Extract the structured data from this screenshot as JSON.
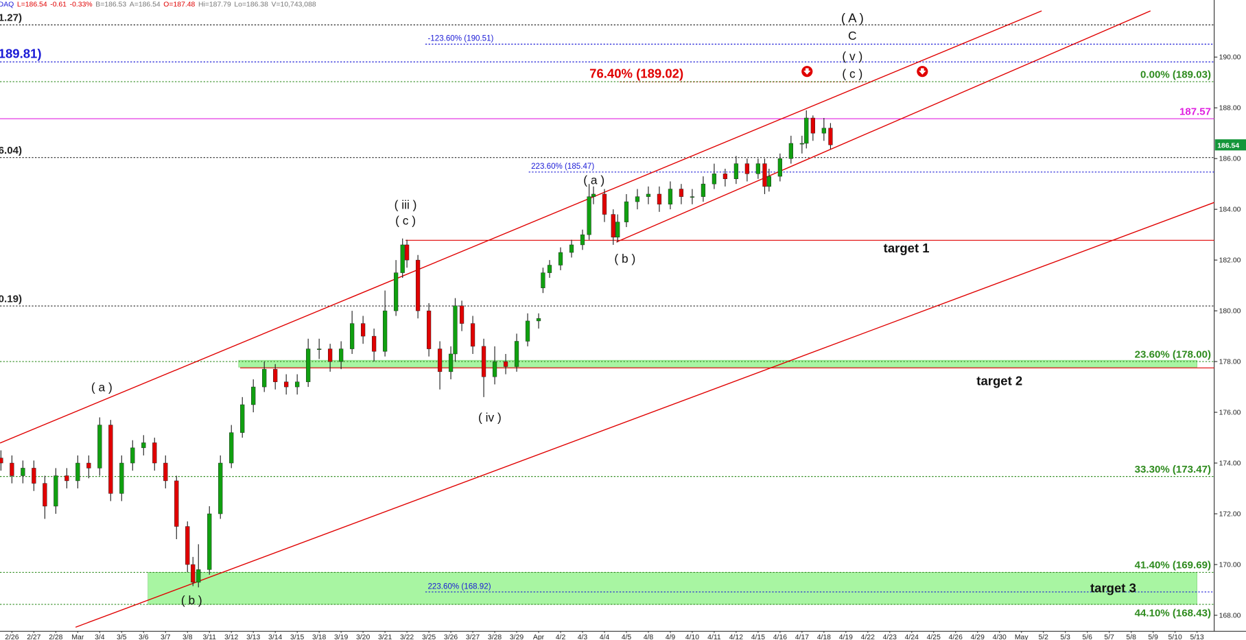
{
  "chart_data": {
    "type": "candlestick",
    "header": [
      {
        "text": "DAQ",
        "color": "#1a1ad6"
      },
      {
        "text": "L=186.54",
        "color": "#e00000"
      },
      {
        "text": "-0.61",
        "color": "#e00000"
      },
      {
        "text": "-0.33%",
        "color": "#e00000"
      },
      {
        "text": "B=186.53",
        "color": "#777777"
      },
      {
        "text": "A=186.54",
        "color": "#777777"
      },
      {
        "text": "O=187.48",
        "color": "#e00000"
      },
      {
        "text": "Hi=187.79",
        "color": "#777777"
      },
      {
        "text": "Lo=186.38",
        "color": "#777777"
      },
      {
        "text": "V=10,743,088",
        "color": "#777777"
      }
    ],
    "x": [
      -0.5,
      0,
      0.5,
      1,
      1.5,
      2,
      2.5,
      3,
      3.5,
      4,
      4.5,
      5,
      5.5,
      6,
      6.5,
      7,
      7.5,
      8,
      8.25,
      8.5,
      9,
      9.5,
      10,
      10.5,
      11,
      11.5,
      12,
      12.5,
      13,
      13.5,
      14,
      14.5,
      15,
      15.5,
      16,
      16.5,
      17,
      17.5,
      17.8,
      18,
      18.5,
      19,
      19.5,
      20,
      20.2,
      20.5,
      21,
      21.5,
      22,
      22.5,
      23,
      23.5,
      24,
      24.2,
      24.5,
      25,
      25.5,
      26,
      26.3,
      26.5,
      27,
      27.4,
      27.6,
      28,
      28.5,
      29,
      29.5,
      30,
      30.5,
      31,
      31.5,
      32,
      32.5,
      33,
      33.5,
      34,
      34.3,
      34.5,
      35,
      35.5,
      36,
      36.2,
      36.5,
      37,
      37.3
    ],
    "open": [
      174.2,
      174.0,
      173.5,
      173.8,
      173.2,
      172.3,
      173.5,
      173.3,
      174.0,
      173.8,
      175.5,
      172.8,
      174.0,
      174.6,
      174.8,
      174.0,
      173.3,
      171.5,
      170.0,
      169.3,
      169.8,
      172.0,
      174.0,
      175.2,
      176.3,
      177.0,
      177.7,
      177.2,
      177.0,
      177.2,
      178.5,
      178.5,
      178.0,
      178.5,
      179.5,
      179.0,
      178.4,
      180.0,
      181.5,
      182.6,
      182.0,
      180.0,
      178.5,
      177.6,
      178.3,
      180.2,
      179.5,
      178.6,
      177.4,
      178.0,
      177.8,
      178.8,
      179.6,
      180.9,
      181.5,
      181.8,
      182.3,
      182.6,
      183.0,
      184.5,
      184.6,
      183.8,
      182.9,
      183.5,
      184.3,
      184.5,
      184.6,
      184.2,
      184.8,
      184.5,
      184.5,
      185.0,
      185.4,
      185.2,
      185.8,
      185.4,
      185.8,
      184.9,
      185.3,
      186.0,
      186.6,
      186.6,
      187.6,
      187.0,
      187.2
    ],
    "high": [
      174.5,
      174.3,
      174.1,
      174.1,
      173.5,
      173.8,
      173.8,
      174.3,
      174.3,
      175.8,
      175.7,
      174.3,
      174.9,
      175.1,
      175.0,
      174.3,
      173.5,
      171.7,
      170.3,
      170.8,
      172.3,
      174.3,
      175.5,
      176.6,
      177.3,
      178.0,
      177.9,
      177.5,
      177.5,
      178.9,
      178.9,
      178.7,
      178.8,
      180.0,
      179.8,
      179.3,
      180.8,
      182.0,
      182.85,
      182.8,
      182.2,
      180.3,
      178.8,
      178.6,
      180.5,
      180.4,
      179.8,
      178.9,
      178.6,
      178.3,
      179.1,
      179.9,
      179.9,
      181.7,
      182.0,
      182.5,
      182.8,
      183.2,
      185.0,
      184.9,
      184.8,
      184.0,
      183.8,
      184.6,
      184.8,
      184.9,
      184.9,
      185.1,
      185.0,
      184.8,
      185.3,
      185.8,
      185.6,
      186.1,
      186.0,
      186.0,
      186.0,
      185.6,
      186.2,
      186.9,
      186.9,
      187.9,
      187.7,
      187.6,
      187.4
    ],
    "low": [
      173.7,
      173.2,
      173.2,
      172.9,
      171.8,
      172.0,
      173.0,
      173.0,
      173.4,
      173.5,
      172.5,
      172.5,
      173.7,
      174.3,
      173.7,
      173.0,
      171.0,
      169.7,
      169.15,
      169.1,
      169.6,
      171.8,
      173.8,
      175.0,
      176.0,
      176.8,
      176.9,
      176.7,
      176.7,
      177.0,
      178.1,
      177.6,
      177.7,
      178.3,
      178.7,
      178.0,
      178.2,
      179.8,
      181.3,
      181.7,
      179.7,
      178.2,
      176.9,
      177.3,
      178.0,
      179.2,
      178.3,
      176.6,
      177.1,
      177.5,
      177.6,
      178.6,
      179.3,
      180.7,
      181.3,
      181.6,
      182.1,
      182.4,
      182.8,
      184.2,
      183.5,
      182.6,
      182.7,
      183.3,
      184.0,
      184.2,
      183.9,
      184.0,
      184.2,
      184.2,
      184.3,
      184.8,
      184.9,
      185.0,
      185.1,
      185.2,
      184.6,
      184.7,
      185.1,
      185.8,
      186.2,
      186.4,
      186.7,
      186.7,
      186.38
    ],
    "close": [
      174.0,
      173.5,
      173.8,
      173.2,
      172.3,
      173.5,
      173.3,
      174.0,
      173.8,
      175.5,
      172.8,
      174.0,
      174.6,
      174.8,
      174.0,
      173.3,
      171.5,
      170.0,
      169.3,
      169.8,
      172.0,
      174.0,
      175.2,
      176.3,
      177.0,
      177.7,
      177.2,
      177.0,
      177.2,
      178.5,
      178.5,
      178.0,
      178.5,
      179.5,
      179.0,
      178.4,
      180.0,
      181.5,
      182.6,
      182.0,
      180.0,
      178.5,
      177.6,
      178.3,
      180.2,
      179.5,
      178.6,
      177.4,
      178.0,
      177.8,
      178.8,
      179.6,
      179.7,
      181.5,
      181.8,
      182.3,
      182.6,
      183.0,
      184.5,
      184.6,
      183.8,
      182.9,
      183.5,
      184.3,
      184.5,
      184.6,
      184.2,
      184.8,
      184.5,
      184.5,
      185.0,
      185.4,
      185.2,
      185.8,
      185.4,
      185.8,
      184.9,
      185.3,
      186.0,
      186.6,
      186.6,
      187.6,
      187.0,
      187.2,
      186.54
    ],
    "up_color": "#10a010",
    "down_color": "#e00000",
    "xlim": [
      -0.543,
      54.783
    ],
    "xticks": [
      {
        "value": 0,
        "label": "2/26"
      },
      {
        "value": 1,
        "label": "2/27"
      },
      {
        "value": 2,
        "label": "2/28"
      },
      {
        "value": 3,
        "label": "Mar"
      },
      {
        "value": 4,
        "label": "3/4"
      },
      {
        "value": 5,
        "label": "3/5"
      },
      {
        "value": 6,
        "label": "3/6"
      },
      {
        "value": 7,
        "label": "3/7"
      },
      {
        "value": 8,
        "label": "3/8"
      },
      {
        "value": 9,
        "label": "3/11"
      },
      {
        "value": 10,
        "label": "3/12"
      },
      {
        "value": 11,
        "label": "3/13"
      },
      {
        "value": 12,
        "label": "3/14"
      },
      {
        "value": 13,
        "label": "3/15"
      },
      {
        "value": 14,
        "label": "3/18"
      },
      {
        "value": 15,
        "label": "3/19"
      },
      {
        "value": 16,
        "label": "3/20"
      },
      {
        "value": 17,
        "label": "3/21"
      },
      {
        "value": 18,
        "label": "3/22"
      },
      {
        "value": 19,
        "label": "3/25"
      },
      {
        "value": 20,
        "label": "3/26"
      },
      {
        "value": 21,
        "label": "3/27"
      },
      {
        "value": 22,
        "label": "3/28"
      },
      {
        "value": 23,
        "label": "3/29"
      },
      {
        "value": 24,
        "label": "Apr"
      },
      {
        "value": 25,
        "label": "4/2"
      },
      {
        "value": 26,
        "label": "4/3"
      },
      {
        "value": 27,
        "label": "4/4"
      },
      {
        "value": 28,
        "label": "4/5"
      },
      {
        "value": 29,
        "label": "4/8"
      },
      {
        "value": 30,
        "label": "4/9"
      },
      {
        "value": 31,
        "label": "4/10"
      },
      {
        "value": 32,
        "label": "4/11"
      },
      {
        "value": 33,
        "label": "4/12"
      },
      {
        "value": 34,
        "label": "4/15"
      },
      {
        "value": 35,
        "label": "4/16"
      },
      {
        "value": 36,
        "label": "4/17"
      },
      {
        "value": 37,
        "label": "4/18"
      },
      {
        "value": 38,
        "label": "4/19"
      },
      {
        "value": 39,
        "label": "4/22"
      },
      {
        "value": 40,
        "label": "4/23"
      },
      {
        "value": 41,
        "label": "4/24"
      },
      {
        "value": 42,
        "label": "4/25"
      },
      {
        "value": 43,
        "label": "4/26"
      },
      {
        "value": 44,
        "label": "4/29"
      },
      {
        "value": 45,
        "label": "4/30"
      },
      {
        "value": 46,
        "label": "May"
      },
      {
        "value": 47,
        "label": "5/2"
      },
      {
        "value": 48,
        "label": "5/3"
      },
      {
        "value": 49,
        "label": "5/6"
      },
      {
        "value": 50,
        "label": "5/7"
      },
      {
        "value": 51,
        "label": "5/8"
      },
      {
        "value": 52,
        "label": "5/9"
      },
      {
        "value": 53,
        "label": "5/10"
      },
      {
        "value": 54,
        "label": "5/13"
      }
    ],
    "ylim": [
      167.37,
      192.25
    ],
    "yticks": [
      {
        "value": 168,
        "label": "168.00"
      },
      {
        "value": 170,
        "label": "170.00"
      },
      {
        "value": 172,
        "label": "172.00"
      },
      {
        "value": 174,
        "label": "174.00"
      },
      {
        "value": 176,
        "label": "176.00"
      },
      {
        "value": 178,
        "label": "178.00"
      },
      {
        "value": 180,
        "label": "180.00"
      },
      {
        "value": 182,
        "label": "182.00"
      },
      {
        "value": 184,
        "label": "184.00"
      },
      {
        "value": 186,
        "label": "186.00"
      },
      {
        "value": 188,
        "label": "188.00"
      },
      {
        "value": 190,
        "label": "190.00"
      }
    ],
    "grid": false,
    "last": 186.54,
    "last_color": "#14963a",
    "bands": [
      {
        "from": 168.43,
        "to": 169.69,
        "start": 6.2,
        "end": 54.0,
        "color": "#a8f5a2"
      },
      {
        "from": 177.78,
        "to": 178.05,
        "start": 10.33,
        "end": 54.0,
        "color": "#a8f5a2"
      }
    ],
    "levels": [
      {
        "value": 191.27,
        "label": "1.27)",
        "color": "#222222",
        "dashed": true,
        "label_at": "left"
      },
      {
        "value": 190.51,
        "label": "-123.60% (190.51)",
        "color": "#1a1ad6",
        "dashed": true,
        "start": 18.84,
        "label_at": "start"
      },
      {
        "value": 189.81,
        "label": "189.81)",
        "color": "#1a1ad6",
        "dashed": true,
        "label_at": "left"
      },
      {
        "value": 189.02,
        "label": "76.40% (189.02)",
        "color": "#e00000",
        "dashed": true,
        "start": 27.7,
        "end": 39.0,
        "label_at": "center"
      },
      {
        "value": 189.03,
        "label": "0.00% (189.03)",
        "color": "#2e8b1e",
        "dashed": true,
        "label_at": "right"
      },
      {
        "value": 187.57,
        "label": "187.57",
        "color": "#e020e0",
        "dashed": false,
        "label_at": "right"
      },
      {
        "value": 186.04,
        "label": "6.04)",
        "color": "#222222",
        "dashed": true,
        "label_at": "left"
      },
      {
        "value": 185.47,
        "label": "223.60% (185.47)",
        "color": "#1a1ad6",
        "dashed": true,
        "start": 23.55,
        "label_at": "start"
      },
      {
        "value": 182.78,
        "color": "#e00000",
        "dashed": false,
        "start": 17.93
      },
      {
        "value": 180.19,
        "label": "0.19)",
        "color": "#222222",
        "dashed": true,
        "label_at": "left"
      },
      {
        "value": 178,
        "label": "23.60% (178.00)",
        "color": "#2e8b1e",
        "dashed": true,
        "label_at": "right"
      },
      {
        "value": 177.75,
        "color": "#e00000",
        "dashed": false,
        "start": 10.4
      },
      {
        "value": 173.47,
        "label": "33.30% (173.47)",
        "color": "#2e8b1e",
        "dashed": true,
        "label_at": "right"
      },
      {
        "value": 169.69,
        "label": "41.40% (169.69)",
        "color": "#2e8b1e",
        "dashed": true,
        "label_at": "right"
      },
      {
        "value": 168.92,
        "label": "223.60% (168.92)",
        "color": "#1a1ad6",
        "dashed": true,
        "start": 18.84,
        "label_at": "start"
      },
      {
        "value": 168.43,
        "label": "44.10% (168.43)",
        "color": "#2e8b1e",
        "dashed": true,
        "label_at": "right-below"
      }
    ],
    "trendlines": [
      {
        "x": [
          -0.54,
          46.92
        ],
        "y": [
          174.79,
          191.82
        ],
        "color": "#e00000"
      },
      {
        "x": [
          27.54,
          51.88
        ],
        "y": [
          182.71,
          191.82
        ],
        "color": "#e00000"
      },
      {
        "x": [
          2.9,
          54.78
        ],
        "y": [
          167.53,
          184.27
        ],
        "color": "#e00000"
      }
    ],
    "annotations": [
      "( A )",
      "C",
      "( v )",
      "( c )",
      "( iii )",
      "( c )",
      "( a )",
      "( b )",
      "( a )",
      "( b )",
      "( iv )",
      "target 1",
      "target 2",
      "target 3"
    ]
  }
}
